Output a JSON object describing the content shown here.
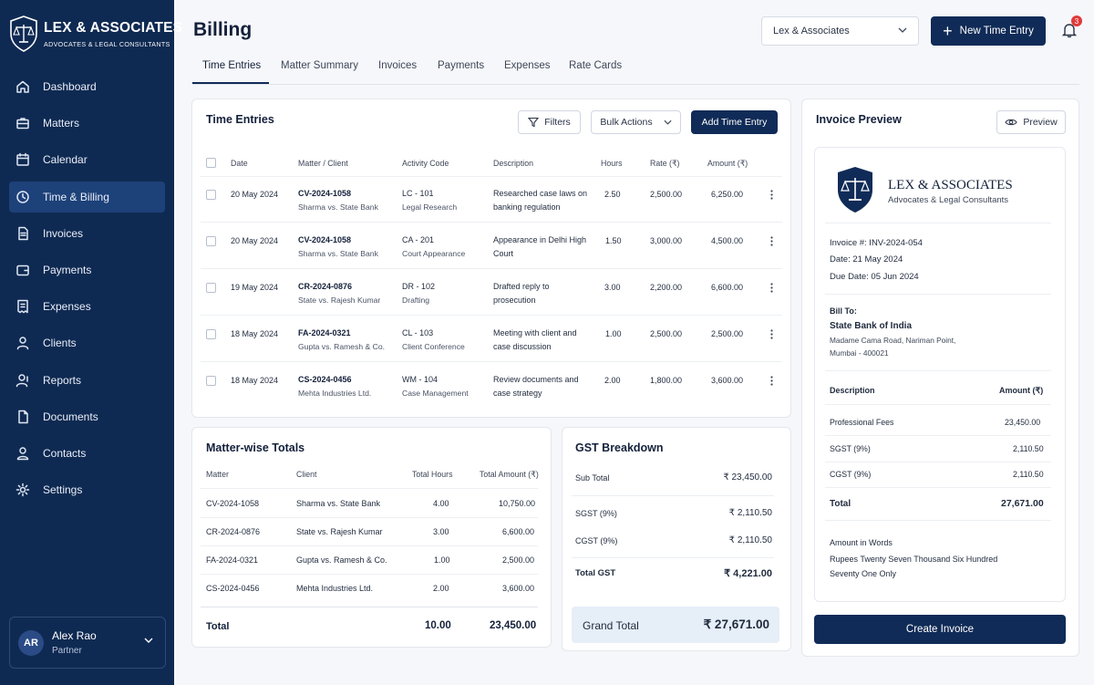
{
  "brand": {
    "name": "LEX & ASSOCIATES",
    "tagline": "ADVOCATES & LEGAL CONSULTANTS"
  },
  "sidebar": {
    "items": [
      {
        "label": "Dashboard",
        "icon": "home-icon"
      },
      {
        "label": "Matters",
        "icon": "briefcase-icon"
      },
      {
        "label": "Calendar",
        "icon": "calendar-icon"
      },
      {
        "label": "Time & Billing",
        "icon": "clock-icon",
        "active": true
      },
      {
        "label": "Invoices",
        "icon": "document-icon"
      },
      {
        "label": "Payments",
        "icon": "wallet-icon"
      },
      {
        "label": "Expenses",
        "icon": "receipt-icon"
      },
      {
        "label": "Clients",
        "icon": "users-icon"
      },
      {
        "label": "Reports",
        "icon": "chart-icon"
      },
      {
        "label": "Documents",
        "icon": "file-icon"
      },
      {
        "label": "Contacts",
        "icon": "contacts-icon"
      },
      {
        "label": "Settings",
        "icon": "gear-icon"
      }
    ],
    "user": {
      "initials": "AR",
      "name": "Alex Rao",
      "role": "Partner"
    }
  },
  "header": {
    "title": "Billing",
    "firm_select": "Lex & Associates",
    "new_entry_label": "New Time Entry",
    "notification_count": "3"
  },
  "tabs": [
    "Time Entries",
    "Matter Summary",
    "Invoices",
    "Payments",
    "Expenses",
    "Rate Cards"
  ],
  "time_entries": {
    "title": "Time Entries",
    "filters_label": "Filters",
    "bulk_label": "Bulk Actions",
    "add_label": "Add Time Entry",
    "columns": [
      "Date",
      "Matter / Client",
      "Activity Code",
      "Description",
      "Hours",
      "Rate (₹)",
      "Amount (₹)"
    ],
    "rows": [
      {
        "date": "20 May 2024",
        "matter": "CV-2024-1058",
        "client": "Sharma vs. State Bank",
        "code": "LC - 101",
        "activity": "Legal Research",
        "desc1": "Researched case laws on",
        "desc2": "banking regulation",
        "hours": "2.50",
        "rate": "2,500.00",
        "amount": "6,250.00"
      },
      {
        "date": "20 May 2024",
        "matter": "CV-2024-1058",
        "client": "Sharma vs. State Bank",
        "code": "CA - 201",
        "activity": "Court Appearance",
        "desc1": "Appearance in Delhi High",
        "desc2": "Court",
        "hours": "1.50",
        "rate": "3,000.00",
        "amount": "4,500.00"
      },
      {
        "date": "19 May 2024",
        "matter": "CR-2024-0876",
        "client": "State vs. Rajesh Kumar",
        "code": "DR - 102",
        "activity": "Drafting",
        "desc1": "Drafted reply to",
        "desc2": "prosecution",
        "hours": "3.00",
        "rate": "2,200.00",
        "amount": "6,600.00"
      },
      {
        "date": "18 May 2024",
        "matter": "FA-2024-0321",
        "client": "Gupta vs. Ramesh & Co.",
        "code": "CL - 103",
        "activity": "Client Conference",
        "desc1": "Meeting with client and",
        "desc2": "case discussion",
        "hours": "1.00",
        "rate": "2,500.00",
        "amount": "2,500.00"
      },
      {
        "date": "18 May 2024",
        "matter": "CS-2024-0456",
        "client": "Mehta Industries Ltd.",
        "code": "WM - 104",
        "activity": "Case Management",
        "desc1": "Review documents and",
        "desc2": "case strategy",
        "hours": "2.00",
        "rate": "1,800.00",
        "amount": "3,600.00"
      }
    ]
  },
  "matter_totals": {
    "title": "Matter-wise Totals",
    "columns": [
      "Matter",
      "Client",
      "Total Hours",
      "Total Amount (₹)"
    ],
    "rows": [
      {
        "matter": "CV-2024-1058",
        "client": "Sharma vs. State Bank",
        "hours": "4.00",
        "amount": "10,750.00"
      },
      {
        "matter": "CR-2024-0876",
        "client": "State vs. Rajesh Kumar",
        "hours": "3.00",
        "amount": "6,600.00"
      },
      {
        "matter": "FA-2024-0321",
        "client": "Gupta vs. Ramesh & Co.",
        "hours": "1.00",
        "amount": "2,500.00"
      },
      {
        "matter": "CS-2024-0456",
        "client": "Mehta Industries Ltd.",
        "hours": "2.00",
        "amount": "3,600.00"
      }
    ],
    "total_label": "Total",
    "total_hours": "10.00",
    "total_amount": "23,450.00"
  },
  "gst": {
    "title": "GST Breakdown",
    "sub_total_label": "Sub Total",
    "sub_total": "₹ 23,450.00",
    "sgst_label": "SGST (9%)",
    "sgst": "₹ 2,110.50",
    "cgst_label": "CGST (9%)",
    "cgst": "₹ 2,110.50",
    "total_gst_label": "Total GST",
    "total_gst": "₹ 4,221.00",
    "grand_total_label": "Grand Total",
    "grand_total": "₹ 27,671.00"
  },
  "invoice_preview": {
    "title": "Invoice Preview",
    "preview_label": "Preview",
    "firm_name": "LEX & ASSOCIATES",
    "firm_sub": "Advocates & Legal Consultants",
    "invoice_no": "Invoice #: INV-2024-054",
    "date": "Date: 21 May 2024",
    "due_date": "Due Date: 05 Jun 2024",
    "bill_to_label": "Bill To:",
    "bill_to_name": "State Bank of India",
    "address1": "Madame Cama Road, Nariman Point,",
    "address2": "Mumbai - 400021",
    "desc_header": "Description",
    "amount_header": "Amount (₹)",
    "lines": [
      {
        "label": "Professional Fees",
        "amount": "23,450.00"
      },
      {
        "label": "SGST (9%)",
        "amount": "2,110.50"
      },
      {
        "label": "CGST (9%)",
        "amount": "2,110.50"
      }
    ],
    "total_label": "Total",
    "total": "27,671.00",
    "words_label": "Amount in Words",
    "words1": "Rupees Twenty Seven Thousand Six Hundred",
    "words2": "Seventy One Only",
    "create_label": "Create Invoice"
  },
  "colors": {
    "sidebar": "#0f2a52",
    "sidebar_active": "#1d4179",
    "primary": "#102b57",
    "badge": "#e03a3a",
    "grand_total_bg": "#e6eef8"
  }
}
